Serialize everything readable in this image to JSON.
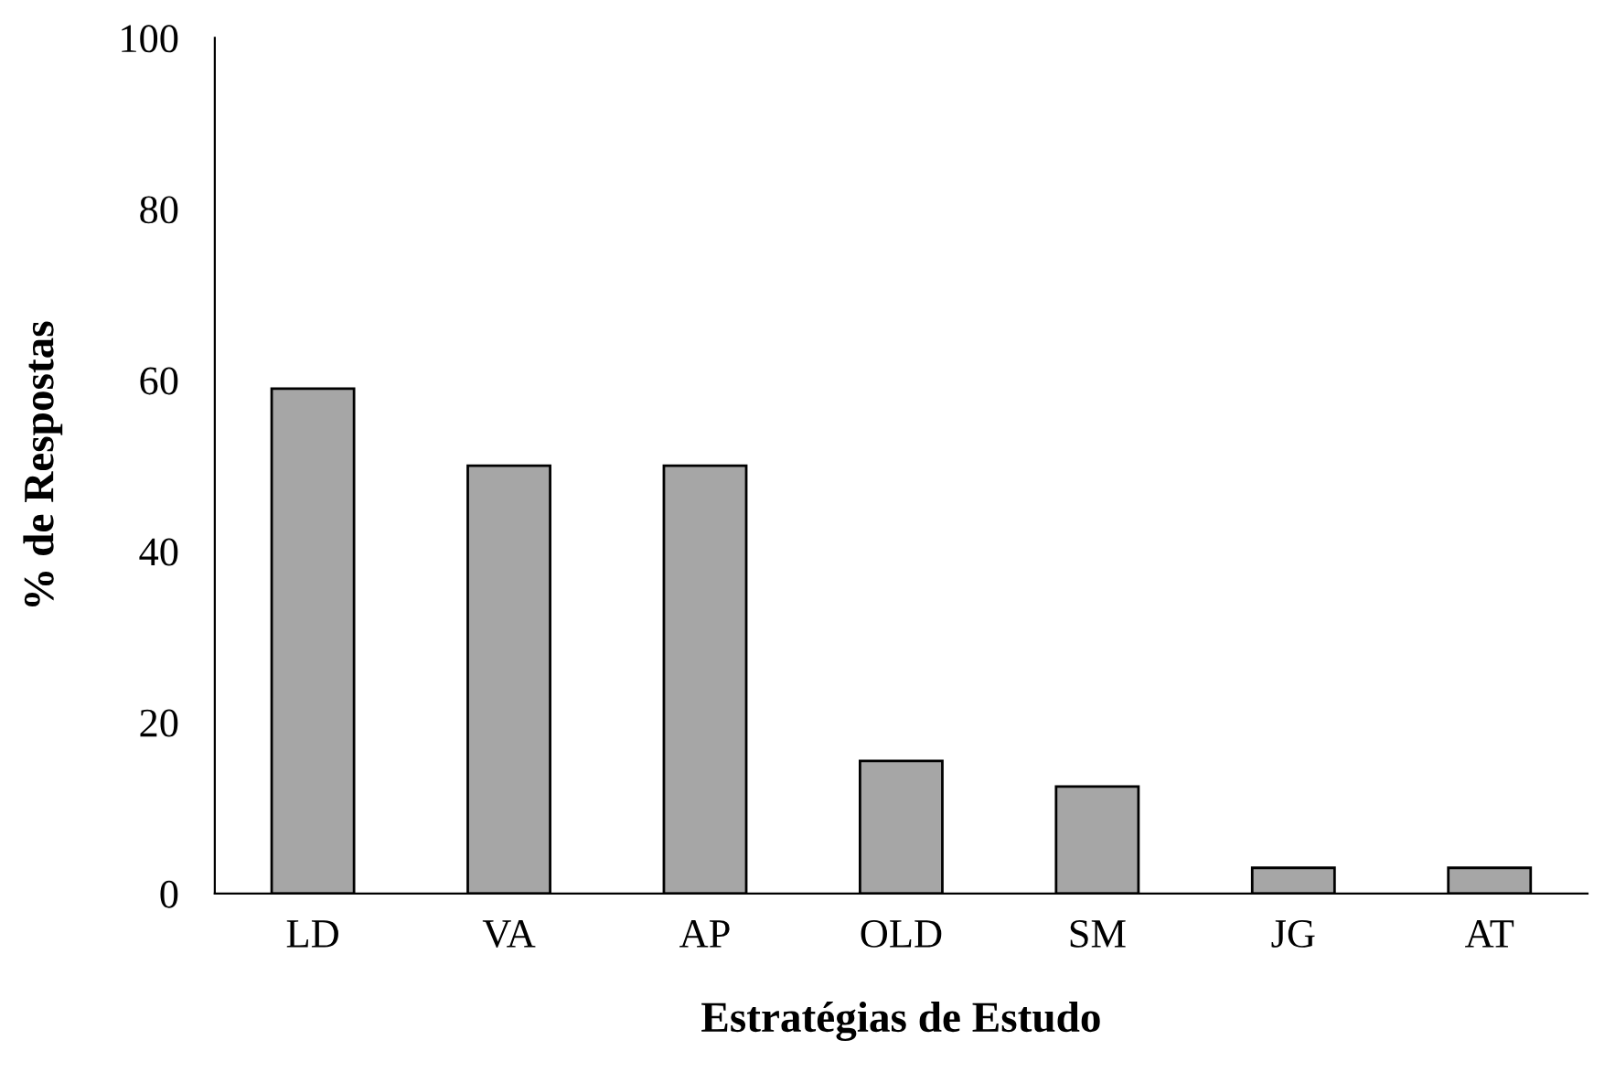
{
  "chart_data": {
    "type": "bar",
    "xlabel": "Estratégias de Estudo",
    "ylabel": "% de Respostas",
    "categories": [
      "LD",
      "VA",
      "AP",
      "OLD",
      "SM",
      "JG",
      "AT"
    ],
    "values": [
      59,
      50,
      50,
      15.5,
      12.5,
      3,
      3
    ],
    "color": "#a6a6a6",
    "ylim": [
      0,
      100
    ],
    "yticks": [
      0,
      20,
      40,
      60,
      80,
      100
    ],
    "grid": false
  }
}
